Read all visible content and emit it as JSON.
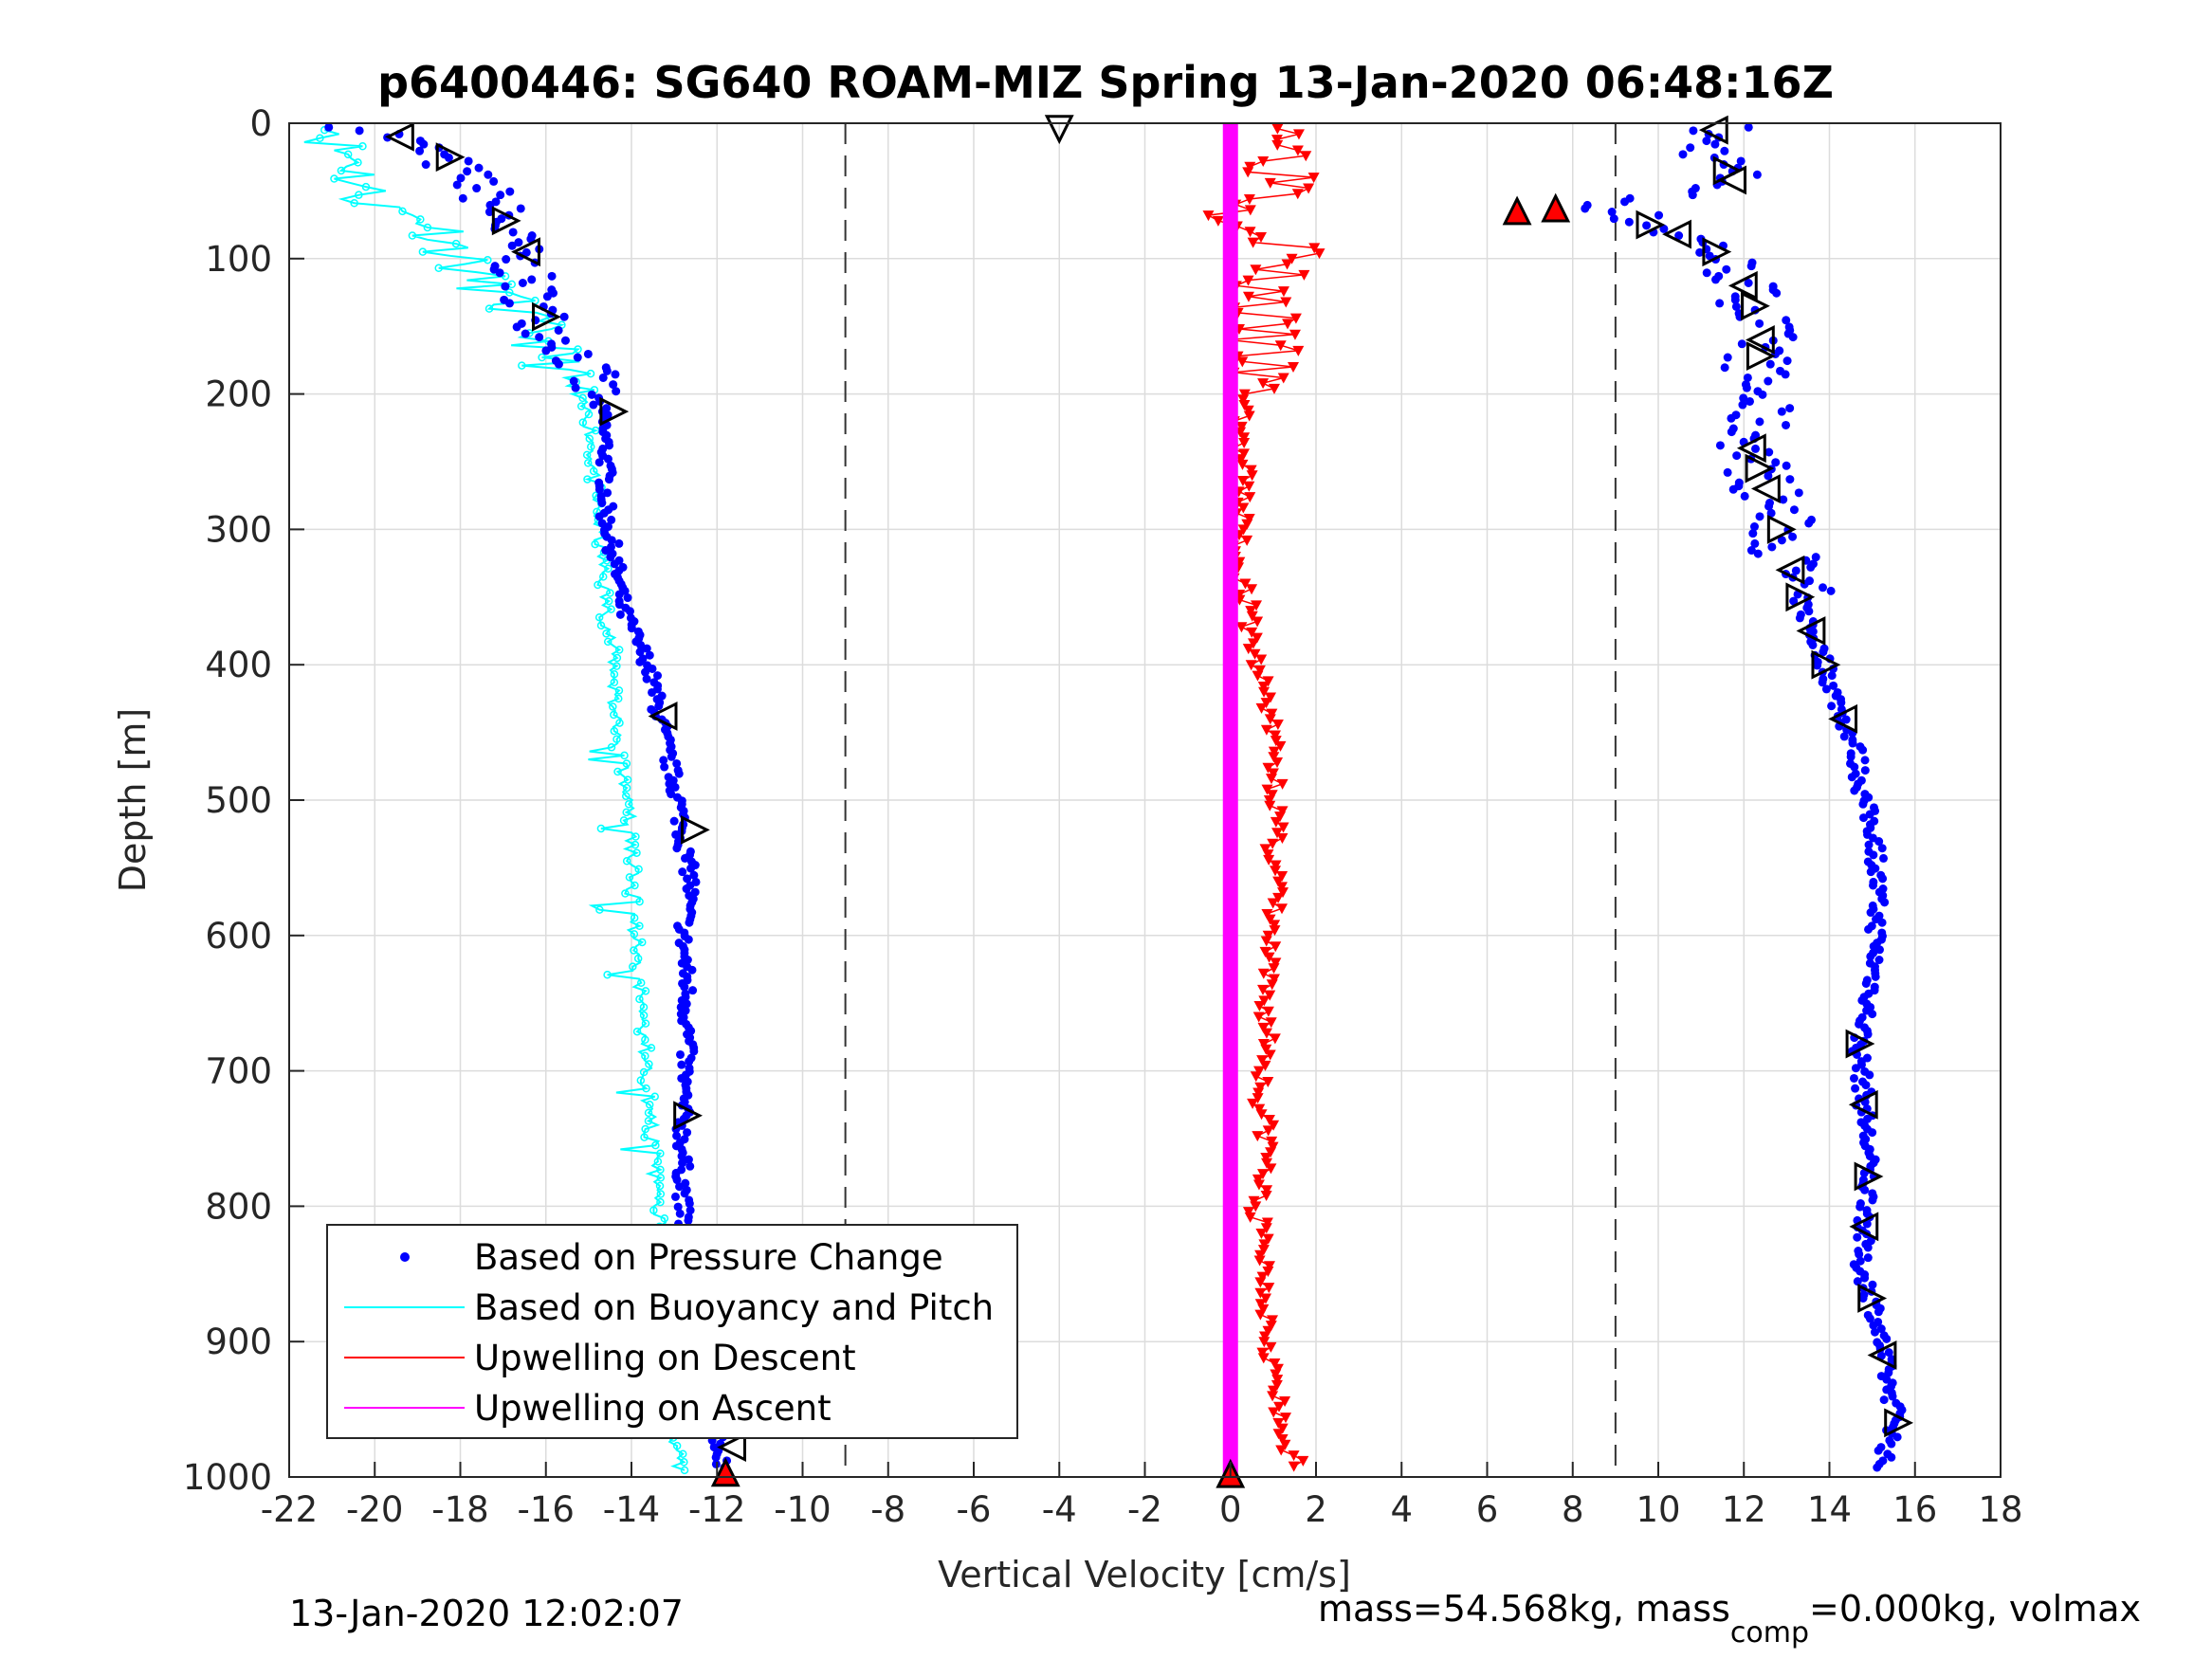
{
  "chart_data": {
    "type": "scatter",
    "title": "p6400446: SG640 ROAM-MIZ Spring 13-Jan-2020 06:48:16Z",
    "xlabel": "Vertical Velocity [cm/s]",
    "ylabel": "Depth [m]",
    "xlim": [
      -22,
      18
    ],
    "ylim": [
      0,
      1000
    ],
    "y_reversed": true,
    "grid": true,
    "x_ticks": [
      "-22",
      "-20",
      "-18",
      "-16",
      "-14",
      "-12",
      "-10",
      "-8",
      "-6",
      "-4",
      "-2",
      "0",
      "2",
      "4",
      "6",
      "8",
      "10",
      "12",
      "14",
      "16",
      "18"
    ],
    "y_ticks": [
      "0",
      "100",
      "200",
      "300",
      "400",
      "500",
      "600",
      "700",
      "800",
      "900",
      "1000"
    ],
    "reference_lines_x": [
      -9,
      9
    ],
    "legend_position": "bottom-left",
    "series": [
      {
        "name": "Based on Pressure Change",
        "color": "#0000ff",
        "depth": [
          2,
          10,
          20,
          30,
          45,
          60,
          75,
          90,
          110,
          130,
          150,
          170,
          190,
          215,
          240,
          260,
          290,
          320,
          360,
          400,
          430,
          460,
          500,
          530,
          560,
          600,
          640,
          680,
          720,
          760,
          800,
          840,
          880,
          920,
          960,
          990
        ],
        "descent": [
          -20.5,
          -19.5,
          -18.8,
          -18.3,
          -17.6,
          -17.2,
          -17.0,
          -16.8,
          -16.6,
          -16.3,
          -16.0,
          -15.3,
          -15.0,
          -14.7,
          -14.6,
          -14.6,
          -14.6,
          -14.4,
          -14.2,
          -13.6,
          -13.4,
          -13.2,
          -12.9,
          -12.8,
          -12.6,
          -12.8,
          -12.7,
          -12.7,
          -12.8,
          -12.8,
          -12.8,
          -12.7,
          -12.6,
          -12.3,
          -12.0,
          -11.9
        ],
        "ascent": [
          11.5,
          11.0,
          11.2,
          11.5,
          11.8,
          8.8,
          9.8,
          11.2,
          11.8,
          12.2,
          12.4,
          12.4,
          12.2,
          12.3,
          12.2,
          12.4,
          12.8,
          13.0,
          13.4,
          13.9,
          14.2,
          14.6,
          14.8,
          15.1,
          15.1,
          15.1,
          15.0,
          14.7,
          14.8,
          14.9,
          14.9,
          14.7,
          15.1,
          15.3,
          15.6,
          15.2
        ]
      },
      {
        "name": "Based on Buoyancy and Pitch",
        "color": "#00ffff",
        "depth": [
          2,
          10,
          20,
          30,
          45,
          60,
          75,
          90,
          110,
          130,
          150,
          170,
          190,
          215,
          240,
          260,
          290,
          320,
          360,
          400,
          430,
          460,
          500,
          530,
          560,
          600,
          640,
          680,
          720,
          760,
          800,
          840,
          880,
          920,
          960,
          990
        ],
        "descent": [
          -20.0,
          -21.0,
          -20.8,
          -20.3,
          -20.4,
          -20.0,
          -18.5,
          -18.2,
          -17.8,
          -17.0,
          -16.4,
          -15.9,
          -15.6,
          -15.0,
          -14.9,
          -14.9,
          -14.8,
          -14.7,
          -14.6,
          -14.4,
          -14.4,
          -14.3,
          -14.1,
          -14.0,
          -14.0,
          -13.9,
          -13.8,
          -13.7,
          -13.6,
          -13.5,
          -13.4,
          -13.3,
          -13.2,
          -13.1,
          -13.0,
          -12.9
        ],
        "ascent": []
      },
      {
        "name": "Upwelling on Descent",
        "color": "#ff0000",
        "depth": [
          5,
          15,
          25,
          35,
          50,
          65,
          80,
          95,
          110,
          130,
          150,
          170,
          190,
          215,
          240,
          260,
          290,
          320,
          360,
          400,
          430,
          460,
          500,
          530,
          560,
          600,
          640,
          680,
          720,
          760,
          800,
          840,
          880,
          920,
          960,
          990
        ],
        "values": [
          2.0,
          1.3,
          1.5,
          1.2,
          1.8,
          0.2,
          1.0,
          1.6,
          0.9,
          0.8,
          0.6,
          0.8,
          0.5,
          0.3,
          0.2,
          0.3,
          0.3,
          0.2,
          0.4,
          0.6,
          0.9,
          1.0,
          1.1,
          1.0,
          1.1,
          0.9,
          0.8,
          0.9,
          0.7,
          0.9,
          0.6,
          0.8,
          0.9,
          1.0,
          1.1,
          1.5
        ]
      },
      {
        "name": "Upwelling on Ascent",
        "color": "#ff00ff",
        "depth": [
          0,
          1000
        ],
        "values": [
          0,
          0
        ]
      }
    ],
    "markers": {
      "open_triangles_descent_depth": [
        10,
        25,
        72,
        95,
        143,
        213,
        438,
        522,
        733,
        978
      ],
      "open_triangles_ascent_depth": [
        5,
        35,
        42,
        75,
        82,
        95,
        120,
        135,
        160,
        172,
        240,
        255,
        270,
        300,
        330,
        350,
        375,
        400,
        440,
        680,
        725,
        778,
        815,
        868,
        910,
        960
      ],
      "red_triangles": [
        [
          6.7,
          65
        ],
        [
          7.6,
          63
        ],
        [
          -11.8,
          997
        ],
        [
          0,
          998
        ]
      ]
    }
  },
  "footer": {
    "left": "13-Jan-2020 12:02:07",
    "right_prefix": "mass=54.568kg, mass",
    "right_sub": "comp",
    "right_suffix": "=0.000kg, volmax"
  }
}
